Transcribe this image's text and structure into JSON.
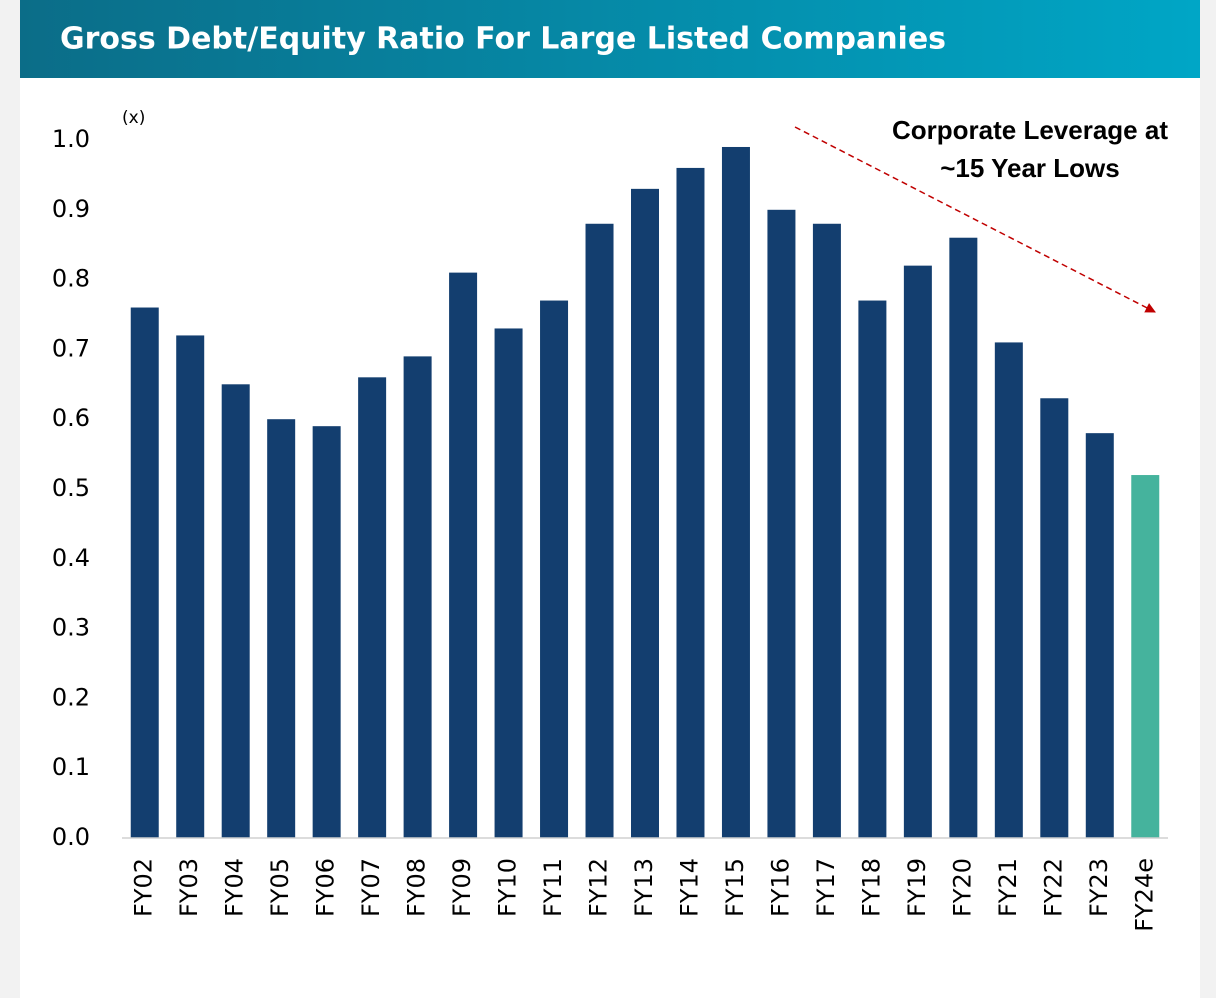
{
  "chart_data": {
    "type": "bar",
    "title": "Gross Debt/Equity Ratio For Large Listed Companies",
    "y_unit": "(x)",
    "annotation": [
      "Corporate Leverage at",
      "~15 Year Lows"
    ],
    "categories": [
      "FY02",
      "FY03",
      "FY04",
      "FY05",
      "FY06",
      "FY07",
      "FY08",
      "FY09",
      "FY10",
      "FY11",
      "FY12",
      "FY13",
      "FY14",
      "FY15",
      "FY16",
      "FY17",
      "FY18",
      "FY19",
      "FY20",
      "FY21",
      "FY22",
      "FY23",
      "FY24e"
    ],
    "values": [
      0.76,
      0.72,
      0.65,
      0.6,
      0.59,
      0.66,
      0.69,
      0.81,
      0.73,
      0.77,
      0.88,
      0.93,
      0.96,
      0.99,
      0.9,
      0.88,
      0.77,
      0.82,
      0.86,
      0.71,
      0.63,
      0.58,
      0.52
    ],
    "colors": [
      "#133e6f",
      "#133e6f",
      "#133e6f",
      "#133e6f",
      "#133e6f",
      "#133e6f",
      "#133e6f",
      "#133e6f",
      "#133e6f",
      "#133e6f",
      "#133e6f",
      "#133e6f",
      "#133e6f",
      "#133e6f",
      "#133e6f",
      "#133e6f",
      "#133e6f",
      "#133e6f",
      "#133e6f",
      "#133e6f",
      "#133e6f",
      "#133e6f",
      "#45b39d"
    ],
    "ylim": [
      0,
      1.0
    ],
    "yticks": [
      {
        "value": 0,
        "label": "0.0"
      },
      0.1,
      0.2,
      0.3,
      0.4,
      0.5,
      0.6,
      0.7,
      0.8,
      0.9,
      {
        "value": 1,
        "label": "1.0"
      }
    ],
    "grid": false
  }
}
